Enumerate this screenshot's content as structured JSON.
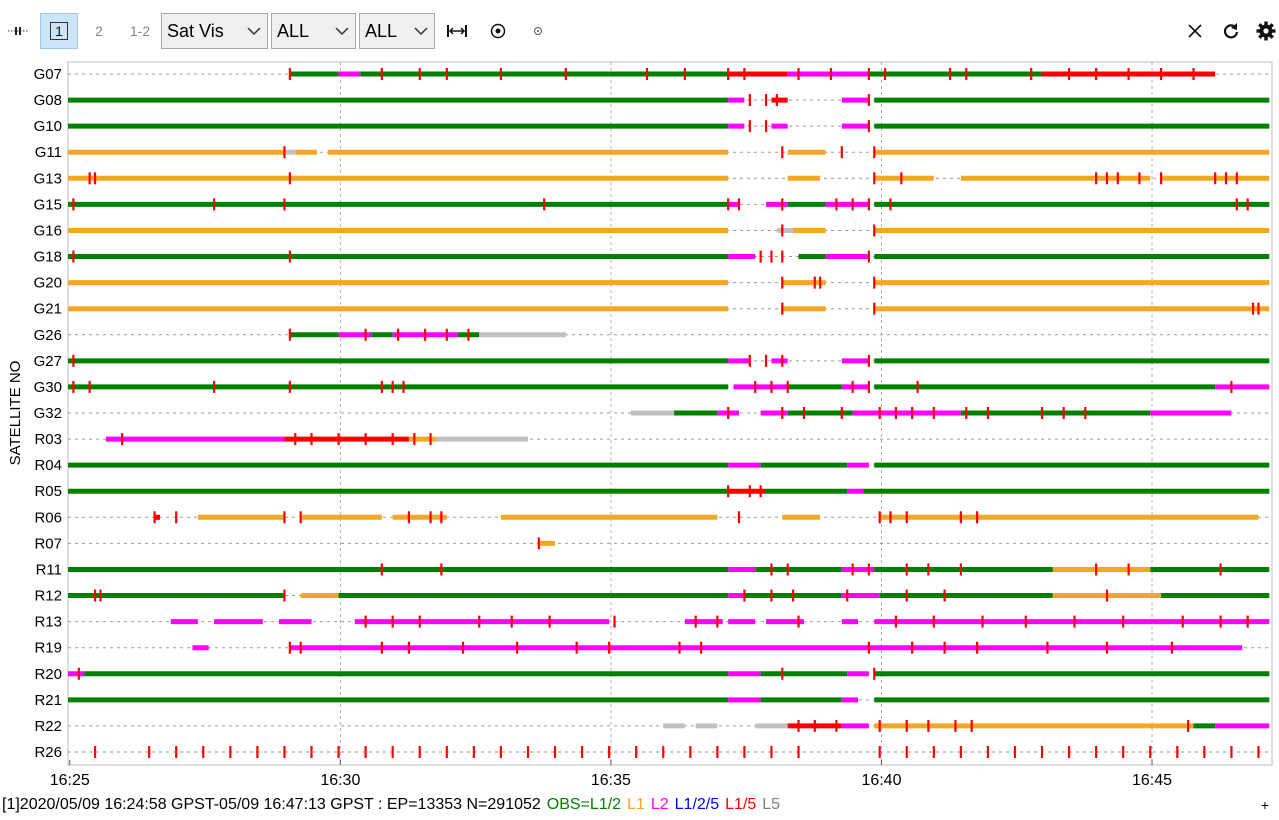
{
  "toolbar": {
    "plot_mode_labels": [
      "1",
      "2",
      "1-2"
    ],
    "plot_type": "Sat Vis",
    "system_filter": "ALL",
    "signal_filter": "ALL",
    "icons": [
      "expand-icon",
      "target-icon",
      "small-circle-icon",
      "close-icon",
      "refresh-icon",
      "settings-gear-icon"
    ]
  },
  "colors": {
    "L1/2": "#008000",
    "L1": "#f5a623",
    "L2": "#ff00ff",
    "L1/2/5": "#0000ff",
    "L1/5": "#ff0000",
    "L5": "#808080",
    "none": "#c0c0c0"
  },
  "status": {
    "prefix": "[1]2020/05/09 16:24:58 GPST-05/09 16:47:13 GPST : EP=13353 N=291052",
    "legend": [
      {
        "text": "OBS=L1/2",
        "color": "#008000"
      },
      {
        "text": "L1",
        "color": "#f5a623"
      },
      {
        "text": "L2",
        "color": "#ff00ff"
      },
      {
        "text": "L1/2/5",
        "color": "#0000ff"
      },
      {
        "text": "L1/5",
        "color": "#ff0000"
      },
      {
        "text": "L5",
        "color": "#808080"
      }
    ]
  },
  "chart_data": {
    "type": "timeline",
    "ylabel": "SATELLITE NO",
    "x_range": [
      "16:25",
      "16:47:13"
    ],
    "x_ticks": [
      "16:25",
      "16:30",
      "16:35",
      "16:40",
      "16:45"
    ],
    "grid": true,
    "satellites": [
      {
        "sat": "G07",
        "segments": [
          [
            4.1,
            5.0,
            "L1/2"
          ],
          [
            5.0,
            5.4,
            "L2"
          ],
          [
            5.4,
            10.0,
            "L1/2"
          ],
          [
            10.0,
            12.2,
            "L1/2"
          ],
          [
            12.2,
            13.3,
            "L1/5"
          ],
          [
            13.3,
            14.8,
            "L2"
          ],
          [
            14.8,
            18.0,
            "L1/2"
          ],
          [
            18.0,
            21.2,
            "L1/5"
          ]
        ],
        "slips": [
          4.1,
          5.8,
          6.5,
          7.0,
          8.0,
          9.2,
          10.7,
          11.4,
          12.2,
          12.5,
          13.5,
          14.1,
          14.8,
          15.1,
          16.3,
          16.6,
          17.8,
          18.5,
          19.0,
          19.6,
          20.2,
          20.8
        ]
      },
      {
        "sat": "G08",
        "segments": [
          [
            0.0,
            12.2,
            "L1/2"
          ],
          [
            12.2,
            12.5,
            "L2"
          ],
          [
            13.0,
            13.3,
            "L1/5"
          ],
          [
            14.3,
            14.8,
            "L2"
          ],
          [
            14.9,
            22.2,
            "L1/2"
          ]
        ],
        "slips": [
          12.6,
          12.9,
          13.1,
          14.8
        ]
      },
      {
        "sat": "G10",
        "segments": [
          [
            0.0,
            12.2,
            "L1/2"
          ],
          [
            12.2,
            12.5,
            "L2"
          ],
          [
            13.0,
            13.3,
            "L2"
          ],
          [
            14.3,
            14.8,
            "L2"
          ],
          [
            14.9,
            22.2,
            "L1/2"
          ]
        ],
        "slips": [
          12.6,
          12.9,
          14.8
        ]
      },
      {
        "sat": "G11",
        "segments": [
          [
            0.0,
            4.0,
            "L1"
          ],
          [
            4.0,
            4.2,
            "none"
          ],
          [
            4.2,
            4.6,
            "L1"
          ],
          [
            4.8,
            12.2,
            "L1"
          ],
          [
            13.3,
            14.0,
            "L1"
          ],
          [
            14.9,
            22.2,
            "L1"
          ]
        ],
        "slips": [
          4.0,
          13.2,
          14.3,
          14.9
        ]
      },
      {
        "sat": "G13",
        "segments": [
          [
            0.0,
            12.2,
            "L1"
          ],
          [
            13.3,
            13.9,
            "L1"
          ],
          [
            14.9,
            16.0,
            "L1"
          ],
          [
            16.5,
            20.0,
            "L1"
          ],
          [
            20.2,
            22.2,
            "L1"
          ]
        ],
        "slips": [
          0.4,
          0.5,
          4.1,
          14.9,
          15.4,
          19.0,
          19.2,
          19.4,
          19.8,
          20.2,
          21.2,
          21.4,
          21.6
        ]
      },
      {
        "sat": "G15",
        "segments": [
          [
            0.0,
            12.2,
            "L1/2"
          ],
          [
            12.2,
            12.4,
            "L2"
          ],
          [
            12.9,
            13.3,
            "L2"
          ],
          [
            13.3,
            14.0,
            "L1/2"
          ],
          [
            14.0,
            14.8,
            "L2"
          ],
          [
            14.9,
            22.2,
            "L1/2"
          ]
        ],
        "slips": [
          0.1,
          2.7,
          4.0,
          8.8,
          12.2,
          12.4,
          13.2,
          14.2,
          14.5,
          14.8,
          15.2,
          21.6,
          21.8
        ]
      },
      {
        "sat": "G16",
        "segments": [
          [
            0.0,
            12.2,
            "L1"
          ],
          [
            13.1,
            13.4,
            "none"
          ],
          [
            13.4,
            14.0,
            "L1"
          ],
          [
            14.9,
            22.2,
            "L1"
          ]
        ],
        "slips": [
          13.2,
          14.9
        ]
      },
      {
        "sat": "G18",
        "segments": [
          [
            0.0,
            12.2,
            "L1/2"
          ],
          [
            12.2,
            12.7,
            "L2"
          ],
          [
            13.5,
            14.0,
            "L1/2"
          ],
          [
            14.0,
            14.8,
            "L2"
          ],
          [
            14.9,
            22.2,
            "L1/2"
          ]
        ],
        "slips": [
          0.1,
          4.1,
          12.8,
          13.0,
          13.2,
          14.8
        ]
      },
      {
        "sat": "G20",
        "segments": [
          [
            0.0,
            12.2,
            "L1"
          ],
          [
            13.2,
            14.0,
            "L1"
          ],
          [
            14.9,
            22.2,
            "L1"
          ]
        ],
        "slips": [
          13.2,
          13.8,
          13.9,
          14.9
        ]
      },
      {
        "sat": "G21",
        "segments": [
          [
            0.0,
            12.2,
            "L1"
          ],
          [
            13.2,
            14.0,
            "L1"
          ],
          [
            14.9,
            22.2,
            "L1"
          ]
        ],
        "slips": [
          13.2,
          14.9,
          21.9,
          22.0
        ]
      },
      {
        "sat": "G26",
        "segments": [
          [
            4.1,
            5.0,
            "L1/2"
          ],
          [
            5.0,
            5.6,
            "L2"
          ],
          [
            5.6,
            6.0,
            "L1/2"
          ],
          [
            6.0,
            7.2,
            "L2"
          ],
          [
            7.2,
            7.6,
            "L1/2"
          ],
          [
            7.6,
            9.2,
            "none"
          ]
        ],
        "slips": [
          4.1,
          5.5,
          6.1,
          6.6,
          7.0,
          7.4
        ]
      },
      {
        "sat": "G27",
        "segments": [
          [
            0.0,
            12.2,
            "L1/2"
          ],
          [
            12.2,
            12.6,
            "L2"
          ],
          [
            13.0,
            13.3,
            "L2"
          ],
          [
            14.3,
            14.8,
            "L2"
          ],
          [
            14.9,
            22.2,
            "L1/2"
          ]
        ],
        "slips": [
          0.1,
          12.6,
          12.9,
          13.2,
          14.8
        ]
      },
      {
        "sat": "G30",
        "segments": [
          [
            0.0,
            12.2,
            "L1/2"
          ],
          [
            12.3,
            13.3,
            "L2"
          ],
          [
            13.3,
            14.3,
            "L1/2"
          ],
          [
            14.3,
            14.8,
            "L2"
          ],
          [
            14.9,
            21.2,
            "L1/2"
          ],
          [
            21.2,
            22.2,
            "L2"
          ]
        ],
        "slips": [
          0.1,
          0.4,
          2.7,
          4.1,
          5.8,
          6.0,
          6.2,
          12.7,
          13.0,
          13.3,
          14.5,
          14.8,
          15.7,
          21.5
        ]
      },
      {
        "sat": "G32",
        "segments": [
          [
            10.4,
            11.2,
            "none"
          ],
          [
            11.2,
            12.0,
            "L1/2"
          ],
          [
            12.0,
            12.4,
            "L2"
          ],
          [
            12.8,
            13.3,
            "L2"
          ],
          [
            13.3,
            14.5,
            "L1/2"
          ],
          [
            14.5,
            16.5,
            "L2"
          ],
          [
            16.5,
            20.0,
            "L1/2"
          ],
          [
            20.0,
            21.5,
            "L2"
          ]
        ],
        "slips": [
          12.2,
          13.2,
          13.6,
          14.3,
          15.0,
          15.3,
          15.6,
          16.0,
          16.6,
          17.0,
          18.0,
          18.4,
          18.8
        ]
      },
      {
        "sat": "R03",
        "segments": [
          [
            0.7,
            4.0,
            "L2"
          ],
          [
            4.0,
            6.3,
            "L1/5"
          ],
          [
            6.3,
            6.8,
            "L1"
          ],
          [
            6.8,
            8.5,
            "none"
          ]
        ],
        "slips": [
          1.0,
          4.2,
          4.5,
          5.0,
          5.5,
          6.0,
          6.4,
          6.7
        ]
      },
      {
        "sat": "R04",
        "segments": [
          [
            0.0,
            12.2,
            "L1/2"
          ],
          [
            12.2,
            12.8,
            "L2"
          ],
          [
            12.8,
            14.4,
            "L1/2"
          ],
          [
            14.4,
            14.8,
            "L2"
          ],
          [
            14.9,
            22.2,
            "L1/2"
          ]
        ],
        "slips": []
      },
      {
        "sat": "R05",
        "segments": [
          [
            0.0,
            12.2,
            "L1/2"
          ],
          [
            12.2,
            12.9,
            "L1/5"
          ],
          [
            12.9,
            14.4,
            "L1/2"
          ],
          [
            14.4,
            14.7,
            "L2"
          ],
          [
            14.7,
            22.2,
            "L1/2"
          ]
        ],
        "slips": [
          12.2,
          12.6,
          12.8
        ]
      },
      {
        "sat": "R06",
        "segments": [
          [
            1.6,
            1.7,
            "L1/5"
          ],
          [
            2.4,
            4.0,
            "L1"
          ],
          [
            4.3,
            5.8,
            "L1"
          ],
          [
            6.0,
            7.0,
            "L1"
          ],
          [
            8.0,
            12.0,
            "L1"
          ],
          [
            13.2,
            13.9,
            "L1"
          ],
          [
            15.0,
            22.0,
            "L1"
          ]
        ],
        "slips": [
          1.6,
          2.0,
          4.0,
          4.3,
          6.3,
          6.7,
          6.9,
          12.4,
          15.0,
          15.2,
          15.5,
          16.5,
          16.8
        ]
      },
      {
        "sat": "R07",
        "segments": [
          [
            8.7,
            9.0,
            "L1"
          ]
        ],
        "slips": [
          8.7
        ]
      },
      {
        "sat": "R11",
        "segments": [
          [
            0.0,
            12.2,
            "L1/2"
          ],
          [
            12.2,
            12.7,
            "L2"
          ],
          [
            12.7,
            14.3,
            "L1/2"
          ],
          [
            14.3,
            14.9,
            "L2"
          ],
          [
            14.9,
            18.2,
            "L1/2"
          ],
          [
            18.2,
            20.0,
            "L1"
          ],
          [
            20.0,
            22.2,
            "L1/2"
          ]
        ],
        "slips": [
          5.8,
          6.9,
          13.0,
          13.3,
          14.5,
          14.8,
          15.5,
          15.9,
          16.5,
          19.0,
          19.6,
          21.3
        ]
      },
      {
        "sat": "R12",
        "segments": [
          [
            0.0,
            4.0,
            "L1/2"
          ],
          [
            4.3,
            5.0,
            "L1"
          ],
          [
            5.0,
            12.2,
            "L1/2"
          ],
          [
            12.2,
            12.5,
            "L2"
          ],
          [
            12.5,
            14.3,
            "L1/2"
          ],
          [
            14.3,
            15.0,
            "L2"
          ],
          [
            15.0,
            18.2,
            "L1/2"
          ],
          [
            18.2,
            20.2,
            "L1"
          ],
          [
            20.2,
            22.2,
            "L1/2"
          ]
        ],
        "slips": [
          0.5,
          0.6,
          4.0,
          12.5,
          13.0,
          13.4,
          14.4,
          15.5,
          16.2,
          19.2
        ]
      },
      {
        "sat": "R13",
        "segments": [
          [
            1.9,
            2.4,
            "L2"
          ],
          [
            2.7,
            3.6,
            "L2"
          ],
          [
            3.9,
            4.5,
            "L2"
          ],
          [
            5.3,
            10.0,
            "L2"
          ],
          [
            11.4,
            12.1,
            "L2"
          ],
          [
            12.2,
            12.7,
            "L2"
          ],
          [
            12.9,
            13.6,
            "L2"
          ],
          [
            14.3,
            14.6,
            "L2"
          ],
          [
            14.9,
            22.2,
            "L2"
          ]
        ],
        "slips": [
          5.5,
          6.0,
          6.5,
          7.6,
          8.2,
          8.9,
          10.1,
          11.6,
          12.0,
          13.5,
          15.3,
          16.0,
          16.9,
          17.7,
          18.6,
          19.5,
          20.6,
          21.3,
          21.8
        ]
      },
      {
        "sat": "R19",
        "segments": [
          [
            2.3,
            2.6,
            "L2"
          ],
          [
            4.1,
            21.7,
            "L2"
          ]
        ],
        "slips": [
          4.1,
          4.3,
          5.8,
          6.3,
          7.3,
          8.3,
          9.4,
          10.0,
          11.3,
          11.7,
          14.8,
          15.6,
          16.2,
          16.8,
          18.1,
          19.2,
          20.4
        ]
      },
      {
        "sat": "R20",
        "segments": [
          [
            0.0,
            0.3,
            "L2"
          ],
          [
            0.3,
            12.2,
            "L1/2"
          ],
          [
            12.2,
            12.8,
            "L2"
          ],
          [
            12.8,
            14.4,
            "L1/2"
          ],
          [
            14.4,
            14.8,
            "L2"
          ],
          [
            14.9,
            22.2,
            "L1/2"
          ]
        ],
        "slips": [
          0.2,
          13.2,
          14.9
        ]
      },
      {
        "sat": "R21",
        "segments": [
          [
            0.0,
            12.2,
            "L1/2"
          ],
          [
            12.2,
            12.8,
            "L2"
          ],
          [
            12.8,
            14.3,
            "L1/2"
          ],
          [
            14.3,
            14.6,
            "L2"
          ],
          [
            14.9,
            22.2,
            "L1/2"
          ]
        ],
        "slips": []
      },
      {
        "sat": "R22",
        "segments": [
          [
            11.0,
            11.4,
            "none"
          ],
          [
            11.6,
            12.0,
            "none"
          ],
          [
            12.7,
            13.3,
            "none"
          ],
          [
            13.3,
            14.3,
            "L1/5"
          ],
          [
            14.3,
            14.8,
            "L2"
          ],
          [
            14.9,
            17.4,
            "L1"
          ],
          [
            17.4,
            20.8,
            "L1"
          ],
          [
            20.8,
            21.2,
            "L1/2"
          ],
          [
            21.2,
            22.2,
            "L2"
          ]
        ],
        "slips": [
          13.5,
          13.8,
          14.2,
          15.0,
          15.5,
          15.9,
          16.4,
          16.7,
          20.7
        ]
      },
      {
        "sat": "R26",
        "segments": [],
        "slips": [
          0.5,
          1.5,
          2.0,
          2.5,
          3.0,
          3.5,
          4.0,
          4.5,
          5.0,
          5.5,
          6.0,
          6.5,
          7.0,
          7.5,
          8.0,
          8.5,
          9.0,
          9.5,
          10.0,
          10.5,
          11.0,
          11.5,
          12.0,
          12.5,
          13.0,
          13.5,
          15.0,
          15.5,
          16.0,
          16.5,
          17.0,
          17.5,
          18.0,
          18.5,
          19.0,
          19.5,
          20.0,
          20.5,
          21.0,
          21.5,
          22.0
        ]
      }
    ]
  }
}
